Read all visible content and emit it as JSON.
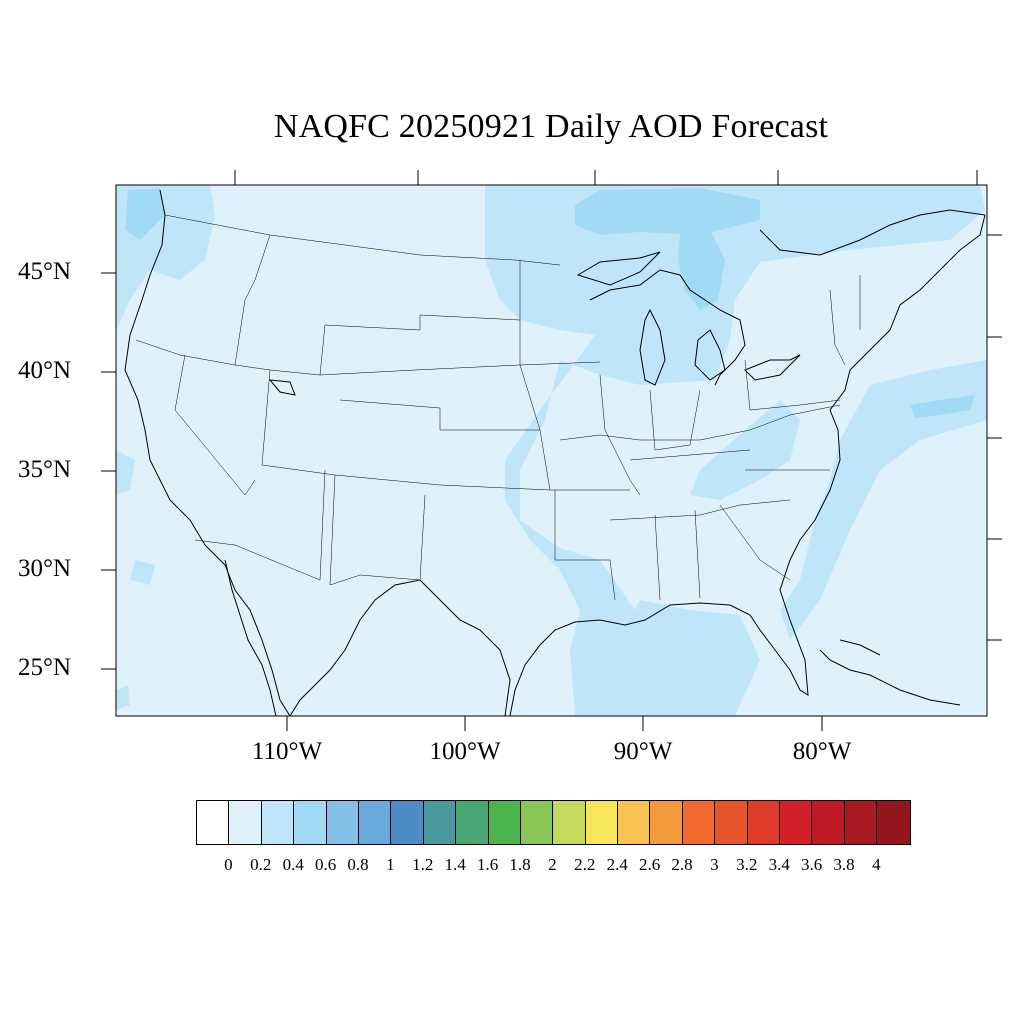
{
  "title": "NAQFC 20250921 Daily AOD Forecast",
  "lat_labels": [
    "45°N",
    "40°N",
    "35°N",
    "30°N",
    "25°N"
  ],
  "lon_labels": [
    "110°W",
    "100°W",
    "90°W",
    "80°W"
  ],
  "colorbar": {
    "colors": [
      "#ffffff",
      "#dff2fb",
      "#bfe6f8",
      "#a0daf5",
      "#83bfe6",
      "#6aa9dc",
      "#4a8bc8",
      "#4a999f",
      "#4aa574",
      "#4bb44b",
      "#89c655",
      "#c5d95b",
      "#f7e65a",
      "#f7c250",
      "#f39a3d",
      "#f16a2e",
      "#e8552c",
      "#e03b2a",
      "#d4202b",
      "#bd1a25",
      "#a81922",
      "#93171d"
    ],
    "labels": [
      "0",
      "0.2",
      "0.4",
      "0.6",
      "0.8",
      "1",
      "1.2",
      "1.4",
      "1.6",
      "1.8",
      "2",
      "2.2",
      "2.4",
      "2.6",
      "2.8",
      "3",
      "3.2",
      "3.4",
      "3.6",
      "3.8",
      "4"
    ]
  },
  "map": {
    "background_color": "#dff2fb",
    "aod_0_4_color": "#bfe6f8",
    "aod_0_6_color": "#a0daf5",
    "boundary_color": "#000000"
  }
}
